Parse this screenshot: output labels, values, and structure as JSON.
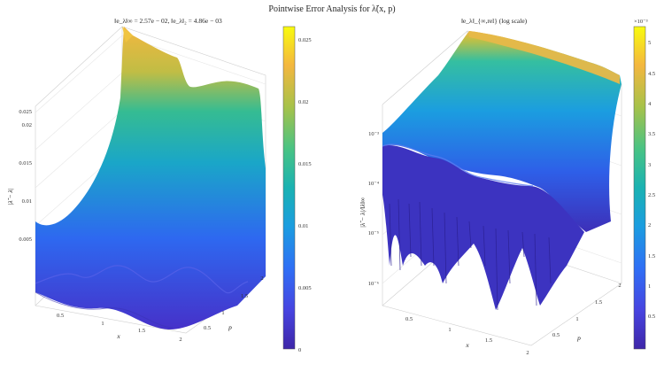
{
  "figure": {
    "title": "Pointwise Error Analysis for λ̃(x, p)"
  },
  "chart_data": [
    {
      "type": "surface",
      "title": "‖e_λ‖∞ = 2.57e − 02,   ‖e_λ‖₂ = 4.86e − 03",
      "xlabel": "x",
      "ylabel": "p",
      "zlabel": "|λ̃ − λ|",
      "x_ticks": [
        "0.5",
        "1",
        "1.5",
        "2"
      ],
      "p_ticks": [
        "0.5",
        "1",
        "1.5",
        "2"
      ],
      "z_ticks": [
        "0.005",
        "0.01",
        "0.015",
        "0.02",
        "0.025"
      ],
      "zlim": [
        0,
        0.026
      ],
      "colorbar": {
        "ticks": [
          "0",
          "0.005",
          "0.01",
          "0.015",
          "0.02",
          "0.025"
        ],
        "range": [
          0,
          0.026
        ]
      },
      "colormap": [
        "#3e26a8",
        "#4744e0",
        "#2f6ff5",
        "#1b9de0",
        "#1ab2b2",
        "#48c384",
        "#a6c24a",
        "#f4b73f",
        "#f9fb0e"
      ]
    },
    {
      "type": "surface",
      "scale": "log",
      "title": "‖e_λ‖_{∞,rel} (log scale)",
      "xlabel": "x",
      "ylabel": "p",
      "zlabel": "|λ̃ − λ|/‖λ‖∞",
      "x_ticks": [
        "0.5",
        "1",
        "1.5",
        "2"
      ],
      "p_ticks": [
        "0.5",
        "1",
        "1.5",
        "2"
      ],
      "z_ticks": [
        "10⁻⁶",
        "10⁻⁵",
        "10⁻⁴",
        "10⁻³"
      ],
      "colorbar": {
        "ticks": [
          "0.5",
          "1",
          "1.5",
          "2",
          "2.5",
          "3",
          "3.5",
          "4",
          "4.5",
          "5"
        ],
        "exponent": "×10⁻³",
        "range": [
          0,
          0.0053
        ]
      },
      "colormap": [
        "#3e26a8",
        "#4744e0",
        "#2f6ff5",
        "#1b9de0",
        "#1ab2b2",
        "#48c384",
        "#a6c24a",
        "#f4b73f",
        "#f9fb0e"
      ]
    }
  ]
}
